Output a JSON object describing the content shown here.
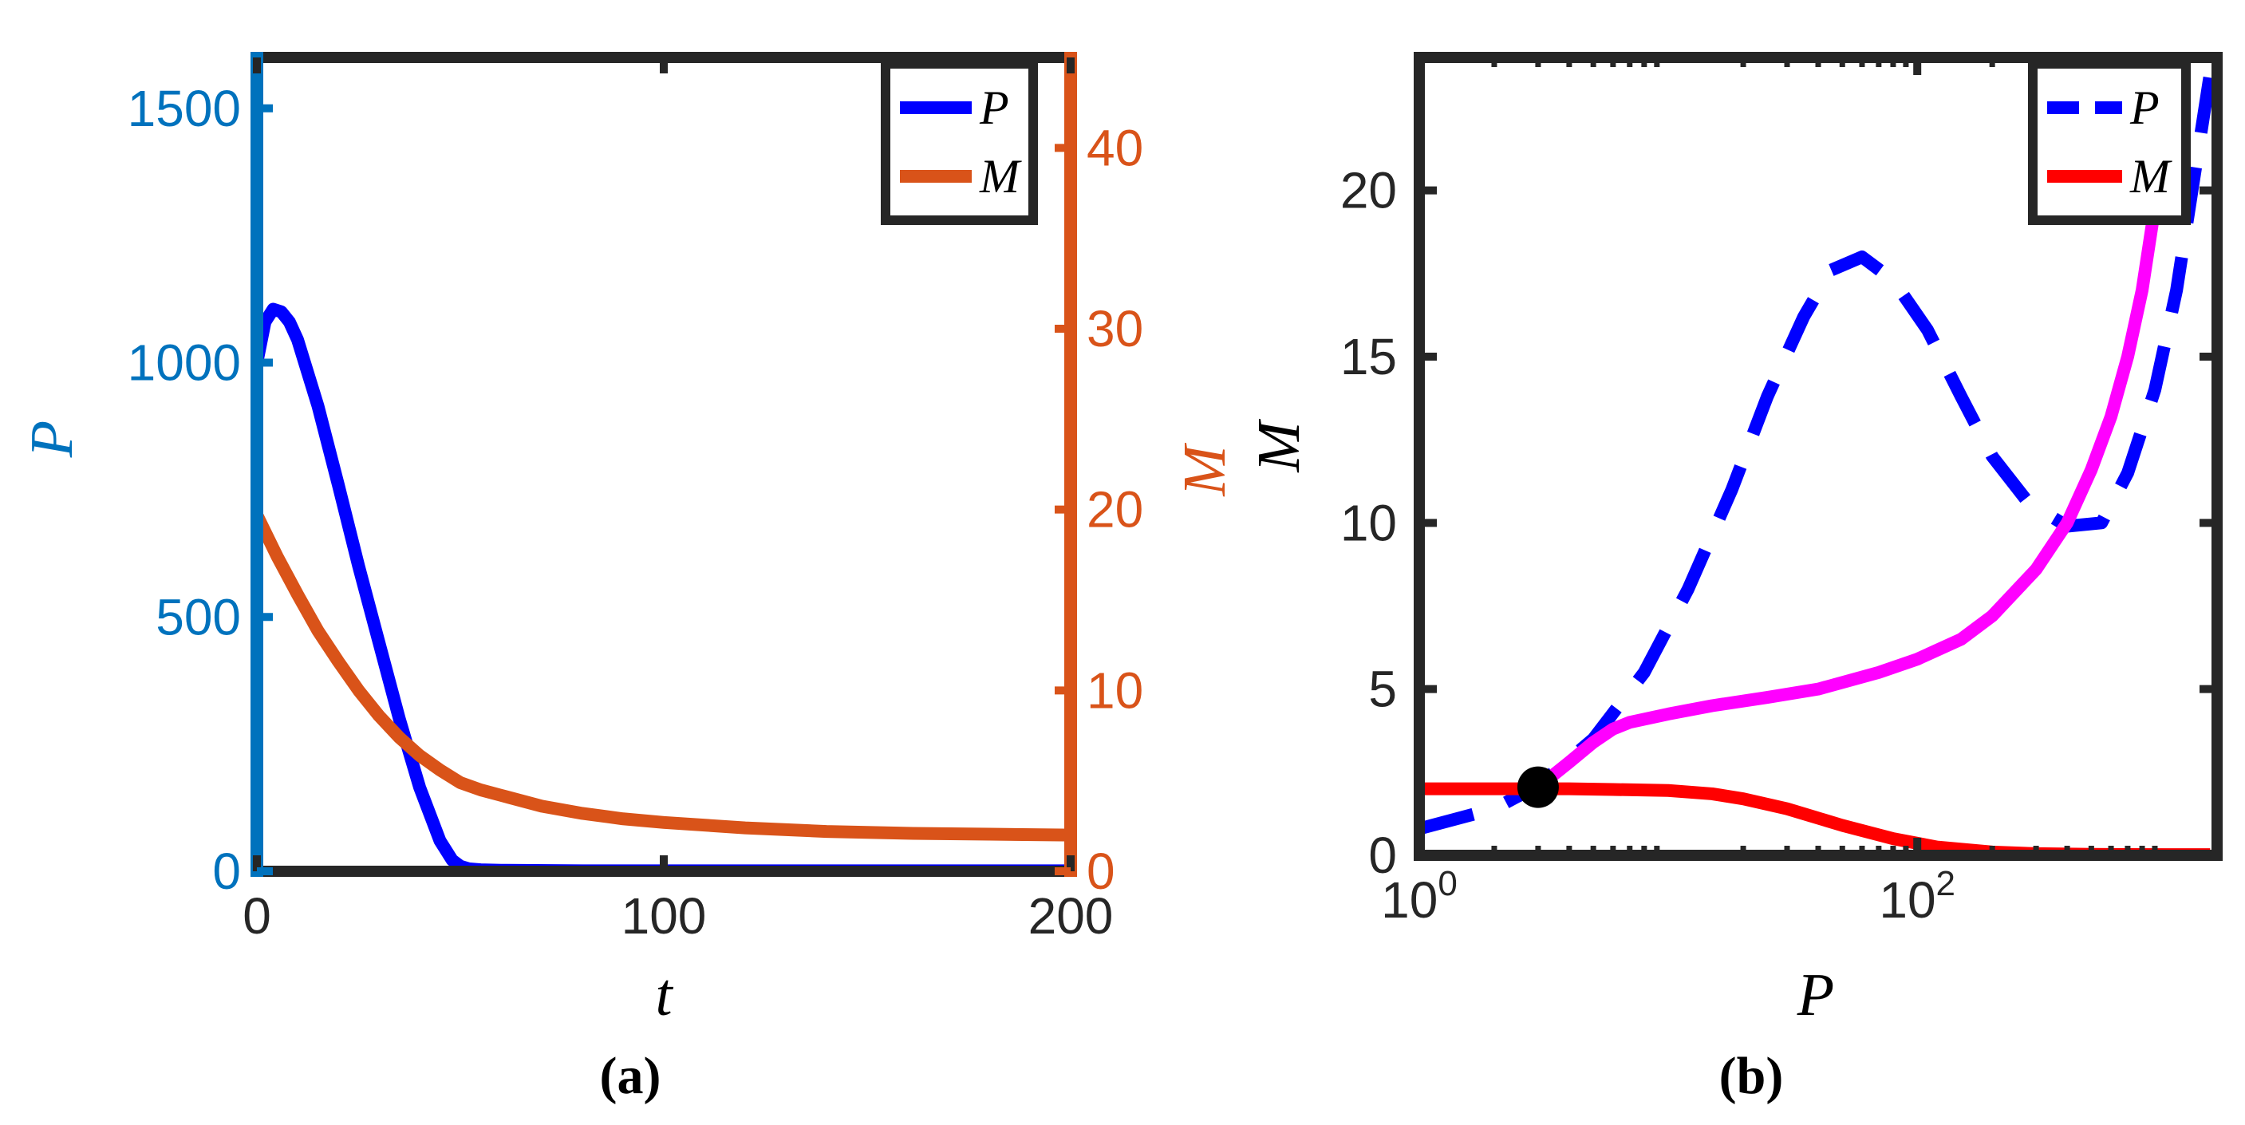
{
  "chart_data": [
    {
      "type": "line",
      "panel_label": "(a)",
      "xlabel": "t",
      "ylabel_left": "P",
      "ylabel_right": "M",
      "xlim": [
        0,
        200
      ],
      "ylim_left": [
        0,
        1600
      ],
      "ylim_right": [
        0,
        45
      ],
      "x_ticks": [
        "0",
        "100",
        "200"
      ],
      "y_left_ticks": [
        "0",
        "500",
        "1000",
        "1500"
      ],
      "y_right_ticks": [
        "0",
        "10",
        "20",
        "30",
        "40"
      ],
      "legend_position": "top-right",
      "colors": {
        "left_axis": "#0072BD",
        "right_axis": "#D95319",
        "P": "#0000FF",
        "M": "#D95319"
      },
      "series": [
        {
          "name": "P",
          "axis": "left",
          "x": [
            0,
            2,
            4,
            6,
            8,
            10,
            15,
            20,
            25,
            30,
            35,
            40,
            45,
            48,
            50,
            52,
            55,
            60,
            80,
            100,
            150,
            200
          ],
          "y": [
            1000,
            1080,
            1105,
            1100,
            1080,
            1045,
            915,
            760,
            600,
            450,
            300,
            165,
            60,
            22,
            10,
            5,
            3,
            2,
            1,
            1,
            1,
            1
          ]
        },
        {
          "name": "M",
          "axis": "right",
          "x": [
            0,
            5,
            10,
            15,
            20,
            25,
            30,
            35,
            40,
            45,
            50,
            55,
            60,
            70,
            80,
            90,
            100,
            120,
            140,
            160,
            180,
            200
          ],
          "y": [
            19.7,
            17.4,
            15.3,
            13.3,
            11.6,
            10.0,
            8.6,
            7.4,
            6.4,
            5.6,
            4.9,
            4.5,
            4.2,
            3.6,
            3.2,
            2.9,
            2.7,
            2.4,
            2.2,
            2.1,
            2.05,
            2.0
          ]
        }
      ]
    },
    {
      "type": "line",
      "panel_label": "(b)",
      "xlabel": "P",
      "ylabel": "M",
      "xscale": "log",
      "xlim": [
        1,
        1600
      ],
      "ylim": [
        0,
        24
      ],
      "x_ticks": [
        {
          "base": "10",
          "exp": "0"
        },
        {
          "base": "10",
          "exp": "2"
        }
      ],
      "y_ticks": [
        "0",
        "5",
        "10",
        "15",
        "20"
      ],
      "legend_position": "top-right",
      "colors": {
        "P": "#0000FF",
        "M": "#FF0000",
        "trajectory": "#FF00FF",
        "equilibrium": "#000000"
      },
      "series": [
        {
          "name": "P",
          "style": "dashed",
          "x": [
            1,
            2,
            3,
            5,
            8,
            12,
            18,
            25,
            35,
            45,
            60,
            80,
            110,
            150,
            200,
            280,
            400,
            550,
            700,
            900,
            1100,
            1300,
            1500
          ],
          "y": [
            0.8,
            1.4,
            2.1,
            3.5,
            5.5,
            8.0,
            11.0,
            13.8,
            16.2,
            17.6,
            18.0,
            17.3,
            15.8,
            13.8,
            12.0,
            10.6,
            9.9,
            10.0,
            11.5,
            14.0,
            17.0,
            20.5,
            23.5
          ]
        },
        {
          "name": "M",
          "style": "solid",
          "x": [
            1,
            2,
            3,
            4,
            6,
            10,
            15,
            20,
            30,
            50,
            80,
            120,
            200,
            300,
            500,
            1000,
            1500
          ],
          "y": [
            2.0,
            2.0,
            2.0,
            2.0,
            1.98,
            1.95,
            1.85,
            1.7,
            1.4,
            0.9,
            0.5,
            0.25,
            0.1,
            0.05,
            0.03,
            0.02,
            0.02
          ]
        },
        {
          "style": "solid",
          "x": [
            3,
            4,
            5,
            6,
            7,
            10,
            15,
            25,
            40,
            70,
            100,
            150,
            200,
            300,
            400,
            500,
            600,
            700,
            800,
            900,
            1000
          ],
          "y": [
            2.05,
            2.8,
            3.4,
            3.8,
            4.0,
            4.25,
            4.5,
            4.75,
            5.0,
            5.5,
            5.9,
            6.5,
            7.2,
            8.6,
            10.0,
            11.6,
            13.2,
            15.0,
            17.0,
            19.5,
            22.5
          ]
        }
      ],
      "equilibrium_point": {
        "x": 3,
        "y": 2.05
      }
    }
  ]
}
